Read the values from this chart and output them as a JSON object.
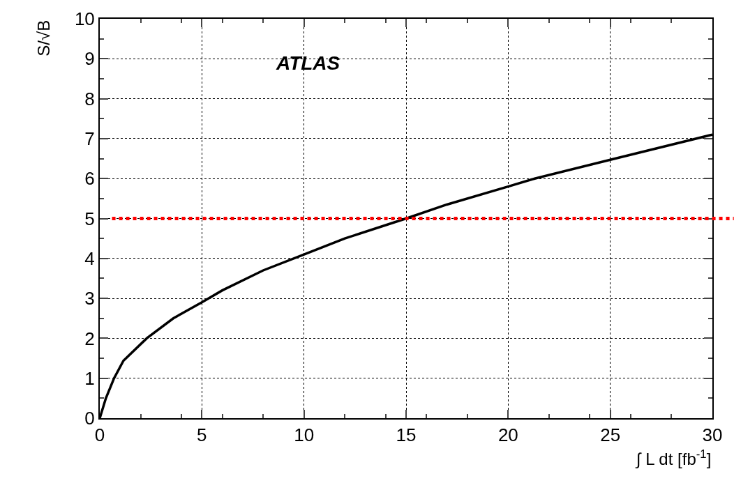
{
  "chart_data": {
    "type": "line",
    "xlabel": "∫ L dt [fb$^{-1}$]",
    "ylabel": "S/√B",
    "annotations": [
      "ATLAS"
    ],
    "x": [
      0,
      0.3,
      0.7,
      1.16,
      2.3,
      3.6,
      5,
      6,
      8,
      10,
      12,
      15,
      17,
      20,
      21.3,
      25,
      30
    ],
    "series": [
      {
        "color": "#000000",
        "values": [
          0,
          0.5,
          1.0,
          1.44,
          2.0,
          2.5,
          2.9,
          3.2,
          3.7,
          4.1,
          4.5,
          5.0,
          5.35,
          5.8,
          6.0,
          6.47,
          7.1
        ]
      }
    ],
    "xlim": [
      0,
      30
    ],
    "ylim": [
      0,
      10
    ],
    "xticks": [
      0,
      5,
      10,
      15,
      20,
      25,
      30
    ],
    "yticks": [
      0,
      1,
      2,
      3,
      4,
      5,
      6,
      7,
      8,
      9,
      10
    ],
    "ref_lines": [
      {
        "axis": "y",
        "value": 5,
        "color": "#ff0000",
        "line_style": "dotted"
      }
    ],
    "grid": true,
    "marker": "none",
    "line_style": "solid"
  }
}
